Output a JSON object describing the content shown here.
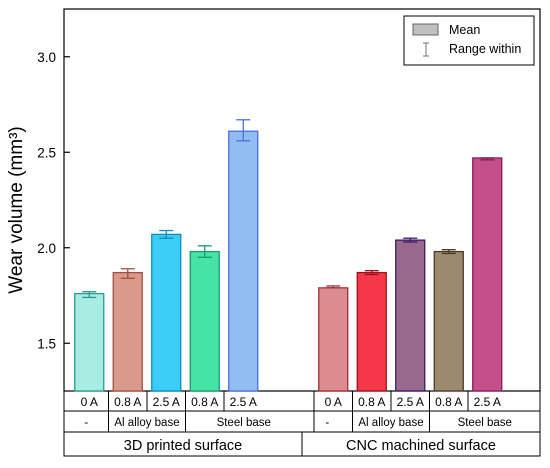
{
  "chart_data": {
    "type": "bar",
    "ylabel": "Wear volume  (mm³)",
    "ylim": [
      1.25,
      3.25
    ],
    "yticks": [
      1.5,
      2.0,
      2.5,
      3.0
    ],
    "ytick_labels": [
      "1.5",
      "2.0",
      "2.5",
      "3.0"
    ],
    "legend": {
      "position": "top-right",
      "mean_label": "Mean",
      "range_label": "Range within"
    },
    "groups": [
      {
        "label": "3D printed surface",
        "subgroups": [
          {
            "label": "-",
            "categories": [
              "0 A"
            ]
          },
          {
            "label": "Al alloy base",
            "categories": [
              "0.8 A",
              "2.5 A"
            ]
          },
          {
            "label": "Steel  base",
            "categories": [
              "0.8 A",
              "2.5 A"
            ]
          }
        ]
      },
      {
        "label": "CNC machined surface",
        "subgroups": [
          {
            "label": "-",
            "categories": [
              "0 A"
            ]
          },
          {
            "label": "Al alloy base",
            "categories": [
              "0.8 A",
              "2.5 A"
            ]
          },
          {
            "label": "Steel  base",
            "categories": [
              "0.8 A",
              "2.5 A"
            ]
          }
        ]
      }
    ],
    "bars": [
      {
        "group": 0,
        "category": "0 A",
        "mean": 1.76,
        "low": 1.74,
        "high": 1.77,
        "fill": "#a8ece4",
        "stroke": "#2a9a8c"
      },
      {
        "group": 0,
        "category": "0.8 A",
        "mean": 1.87,
        "low": 1.84,
        "high": 1.89,
        "fill": "#d99a8c",
        "stroke": "#a05040"
      },
      {
        "group": 0,
        "category": "2.5 A",
        "mean": 2.07,
        "low": 2.05,
        "high": 2.09,
        "fill": "#3ccdf7",
        "stroke": "#0a8fbf"
      },
      {
        "group": 0,
        "category": "0.8 A",
        "mean": 1.98,
        "low": 1.95,
        "high": 2.01,
        "fill": "#45e4a6",
        "stroke": "#1c9a68"
      },
      {
        "group": 0,
        "category": "2.5 A",
        "mean": 2.61,
        "low": 2.56,
        "high": 2.67,
        "fill": "#92bdf2",
        "stroke": "#4a6fd6"
      },
      {
        "group": 1,
        "category": "0 A",
        "mean": 1.79,
        "low": 1.79,
        "high": 1.8,
        "fill": "#dc8c8e",
        "stroke": "#a0303a"
      },
      {
        "group": 1,
        "category": "0.8 A",
        "mean": 1.87,
        "low": 1.86,
        "high": 1.88,
        "fill": "#f53848",
        "stroke": "#a0101e"
      },
      {
        "group": 1,
        "category": "2.5 A",
        "mean": 2.04,
        "low": 2.03,
        "high": 2.05,
        "fill": "#9a6a8e",
        "stroke": "#3a1a6a"
      },
      {
        "group": 1,
        "category": "0.8 A",
        "mean": 1.98,
        "low": 1.97,
        "high": 1.99,
        "fill": "#9c8a70",
        "stroke": "#4a3a26"
      },
      {
        "group": 1,
        "category": "2.5 A",
        "mean": 2.47,
        "low": 2.46,
        "high": 2.47,
        "fill": "#c4508a",
        "stroke": "#8a1a5a"
      }
    ],
    "colors": {
      "legend_mean_fill": "#c0c0c0",
      "legend_range_color": "#888888",
      "axis": "#000000"
    }
  }
}
